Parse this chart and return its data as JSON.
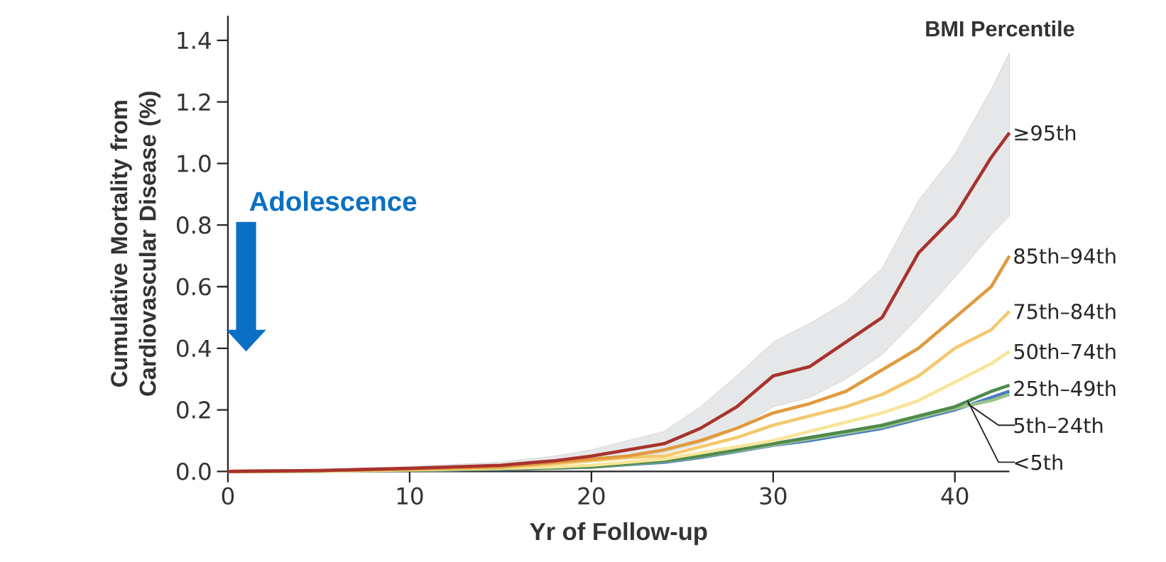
{
  "chart_data": {
    "type": "line",
    "xlabel": "Yr of Follow-up",
    "ylabel": "Cumulative Mortality from Cardiovascular Disease (%)",
    "legend_title": "BMI Percentile",
    "annotations": [
      "Adolescence"
    ],
    "xlim": [
      0,
      43
    ],
    "ylim": [
      0,
      1.48
    ],
    "xticks": [
      0,
      10,
      20,
      30,
      40
    ],
    "yticks": [
      {
        "value": 0,
        "label": "0.0"
      },
      0.2,
      0.4,
      0.6,
      0.8,
      {
        "value": 1,
        "label": "1.0"
      },
      1.2,
      1.4
    ],
    "x": [
      0,
      5,
      10,
      15,
      18,
      20,
      22,
      24,
      26,
      28,
      30,
      32,
      34,
      36,
      38,
      40,
      42,
      43
    ],
    "series": [
      {
        "name": "≥95th",
        "color": "#a8322d",
        "values": [
          0,
          0.003,
          0.01,
          0.02,
          0.035,
          0.05,
          0.07,
          0.09,
          0.14,
          0.21,
          0.31,
          0.34,
          0.42,
          0.5,
          0.71,
          0.83,
          1.02,
          1.1
        ],
        "lower": [
          0,
          0.001,
          0.006,
          0.012,
          0.022,
          0.035,
          0.045,
          0.06,
          0.09,
          0.14,
          0.21,
          0.24,
          0.3,
          0.38,
          0.5,
          0.63,
          0.77,
          0.83
        ],
        "upper": [
          0,
          0.006,
          0.016,
          0.03,
          0.05,
          0.07,
          0.1,
          0.13,
          0.21,
          0.31,
          0.42,
          0.48,
          0.55,
          0.66,
          0.88,
          1.03,
          1.24,
          1.36
        ]
      },
      {
        "name": "85th–94th",
        "color": "#e09a3e",
        "values": [
          0,
          0.002,
          0.008,
          0.015,
          0.03,
          0.04,
          0.05,
          0.07,
          0.1,
          0.14,
          0.19,
          0.22,
          0.26,
          0.33,
          0.4,
          0.5,
          0.6,
          0.7
        ]
      },
      {
        "name": "75th–84th",
        "color": "#f3c96e",
        "values": [
          0,
          0.002,
          0.007,
          0.013,
          0.025,
          0.035,
          0.045,
          0.05,
          0.08,
          0.11,
          0.15,
          0.18,
          0.21,
          0.25,
          0.31,
          0.4,
          0.46,
          0.52
        ]
      },
      {
        "name": "50th–74th",
        "color": "#f8e59a",
        "values": [
          0,
          0.001,
          0.005,
          0.01,
          0.015,
          0.02,
          0.03,
          0.04,
          0.06,
          0.08,
          0.1,
          0.13,
          0.16,
          0.19,
          0.23,
          0.29,
          0.35,
          0.39
        ]
      },
      {
        "name": "25th–49th",
        "color": "#4f8a4c",
        "values": [
          0,
          0.001,
          0.004,
          0.008,
          0.012,
          0.015,
          0.025,
          0.035,
          0.05,
          0.07,
          0.09,
          0.11,
          0.13,
          0.15,
          0.18,
          0.21,
          0.26,
          0.28
        ]
      },
      {
        "name": "5th–24th",
        "color": "#9cc28c",
        "values": [
          0,
          0.001,
          0.004,
          0.008,
          0.012,
          0.015,
          0.024,
          0.033,
          0.048,
          0.067,
          0.087,
          0.105,
          0.125,
          0.145,
          0.175,
          0.205,
          0.23,
          0.25
        ]
      },
      {
        "name": "<5th",
        "color": "#4a7cc6",
        "values": [
          null,
          null,
          0.003,
          0.007,
          0.011,
          0.014,
          0.022,
          0.03,
          0.045,
          0.065,
          0.085,
          0.1,
          0.12,
          0.14,
          0.17,
          0.2,
          0.24,
          0.26
        ]
      }
    ]
  }
}
